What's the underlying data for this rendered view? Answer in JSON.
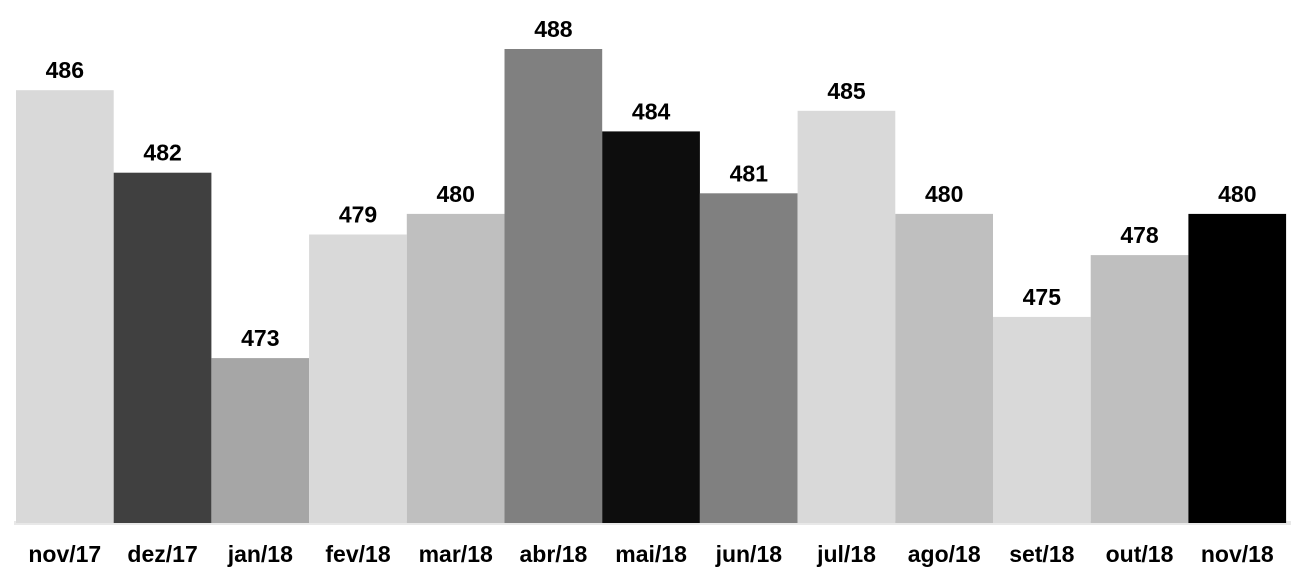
{
  "chart_data": {
    "type": "bar",
    "title": "",
    "xlabel": "",
    "ylabel": "",
    "categories": [
      "nov/17",
      "dez/17",
      "jan/18",
      "fev/18",
      "mar/18",
      "abr/18",
      "mai/18",
      "jun/18",
      "jul/18",
      "ago/18",
      "set/18",
      "out/18",
      "nov/18"
    ],
    "values": [
      486,
      482,
      473,
      479,
      480,
      488,
      484,
      481,
      485,
      480,
      475,
      478,
      480
    ],
    "colors": [
      "#d9d9d9",
      "#404040",
      "#a6a6a6",
      "#d9d9d9",
      "#bfbfbf",
      "#808080",
      "#0d0d0d",
      "#808080",
      "#d9d9d9",
      "#bfbfbf",
      "#d9d9d9",
      "#bfbfbf",
      "#000000"
    ],
    "ylim": [
      465,
      488
    ],
    "grid": false,
    "legend": "none",
    "data_labels": true
  }
}
